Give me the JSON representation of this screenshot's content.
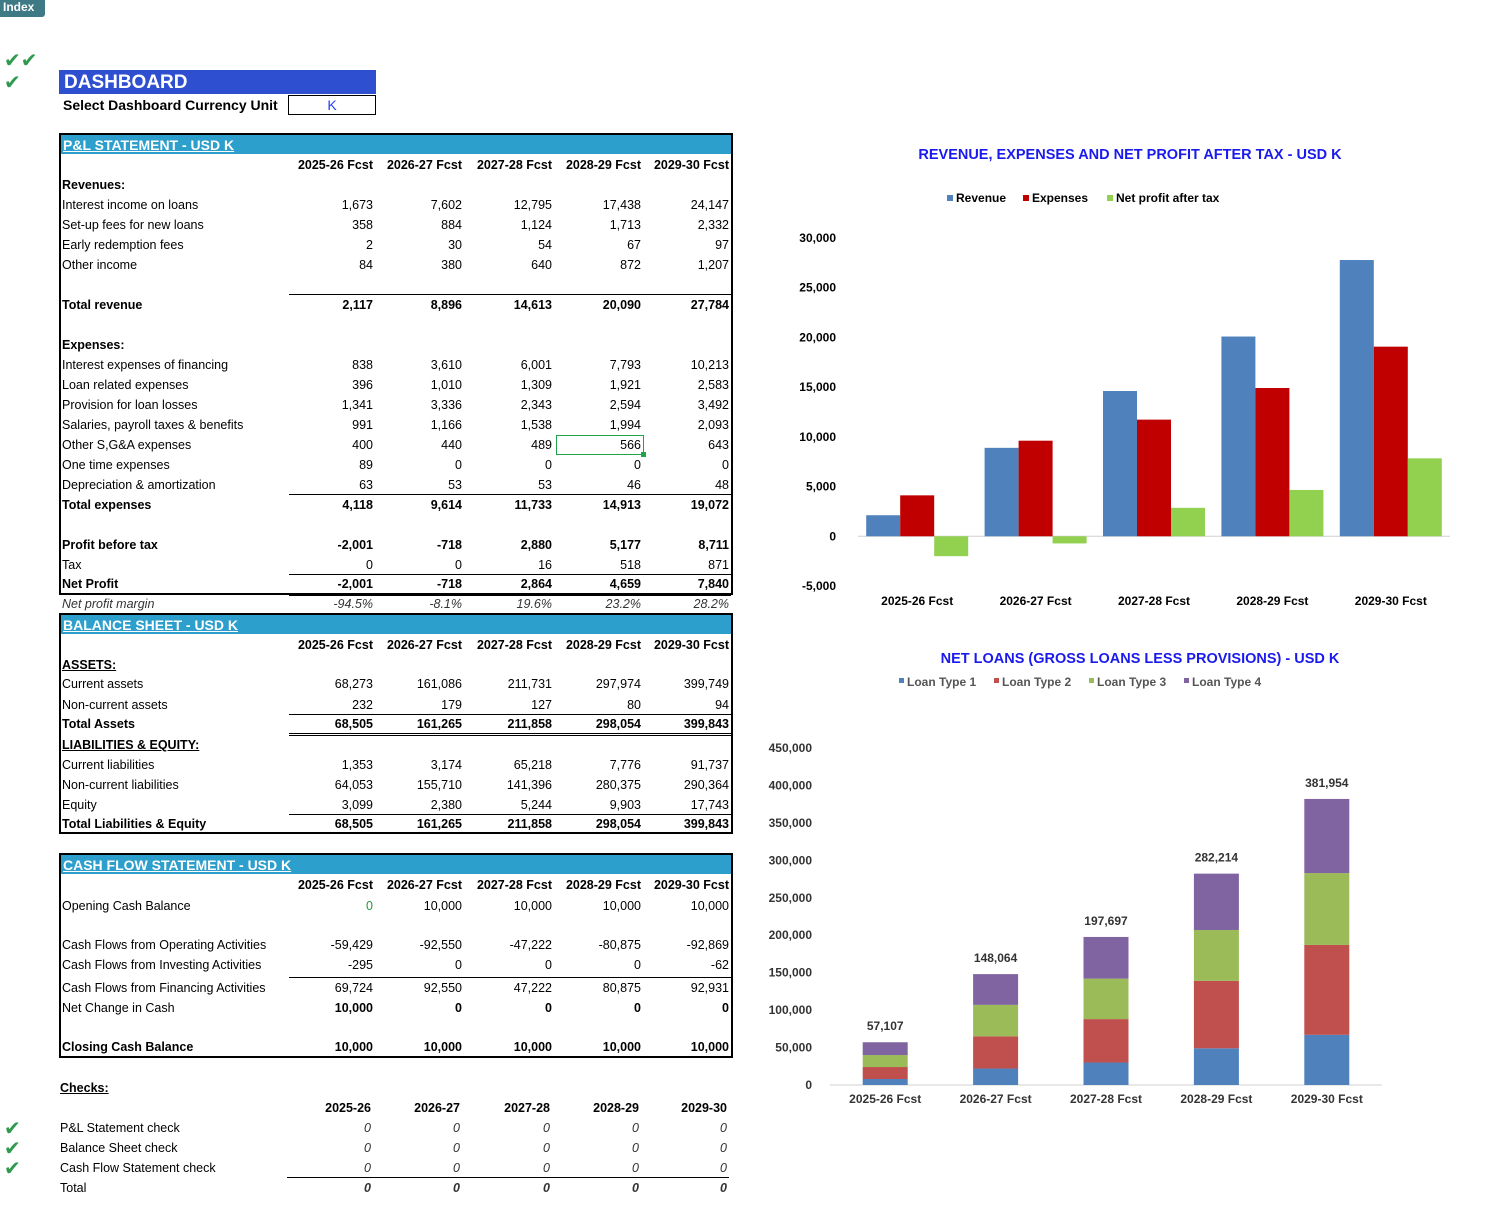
{
  "index_button": "Index",
  "dashboard": {
    "title": "DASHBOARD",
    "currency_label": "Select Dashboard Currency Unit",
    "currency_value": "K"
  },
  "pl": {
    "title": "P&L STATEMENT - USD K",
    "years": [
      "2025-26 Fcst",
      "2026-27 Fcst",
      "2027-28 Fcst",
      "2028-29 Fcst",
      "2029-30 Fcst"
    ],
    "revenues_label": "Revenues:",
    "rows_rev": [
      {
        "label": "Interest income on loans",
        "v": [
          "1,673",
          "7,602",
          "12,795",
          "17,438",
          "24,147"
        ]
      },
      {
        "label": "Set-up fees for new loans",
        "v": [
          "358",
          "884",
          "1,124",
          "1,713",
          "2,332"
        ]
      },
      {
        "label": "Early redemption fees",
        "v": [
          "2",
          "30",
          "54",
          "67",
          "97"
        ]
      },
      {
        "label": "Other income",
        "v": [
          "84",
          "380",
          "640",
          "872",
          "1,207"
        ]
      }
    ],
    "total_revenue": {
      "label": "Total revenue",
      "v": [
        "2,117",
        "8,896",
        "14,613",
        "20,090",
        "27,784"
      ]
    },
    "expenses_label": "Expenses:",
    "rows_exp": [
      {
        "label": "Interest expenses of financing",
        "v": [
          "838",
          "3,610",
          "6,001",
          "7,793",
          "10,213"
        ]
      },
      {
        "label": "Loan related expenses",
        "v": [
          "396",
          "1,010",
          "1,309",
          "1,921",
          "2,583"
        ]
      },
      {
        "label": "Provision for loan losses",
        "v": [
          "1,341",
          "3,336",
          "2,343",
          "2,594",
          "3,492"
        ]
      },
      {
        "label": "Salaries, payroll taxes & benefits",
        "v": [
          "991",
          "1,166",
          "1,538",
          "1,994",
          "2,093"
        ]
      },
      {
        "label": "Other S,G&A expenses",
        "v": [
          "400",
          "440",
          "489",
          "566",
          "643"
        ]
      },
      {
        "label": "One time expenses",
        "v": [
          "89",
          "0",
          "0",
          "0",
          "0"
        ]
      },
      {
        "label": "Depreciation & amortization",
        "v": [
          "63",
          "53",
          "53",
          "46",
          "48"
        ]
      }
    ],
    "total_expenses": {
      "label": "Total expenses",
      "v": [
        "4,118",
        "9,614",
        "11,733",
        "14,913",
        "19,072"
      ]
    },
    "profit_before_tax": {
      "label": "Profit before tax",
      "v": [
        "-2,001",
        "-718",
        "2,880",
        "5,177",
        "8,711"
      ]
    },
    "tax": {
      "label": "Tax",
      "v": [
        "0",
        "0",
        "16",
        "518",
        "871"
      ]
    },
    "net_profit": {
      "label": "Net Profit",
      "v": [
        "-2,001",
        "-718",
        "2,864",
        "4,659",
        "7,840"
      ]
    },
    "net_margin": {
      "label": "Net profit margin",
      "v": [
        "-94.5%",
        "-8.1%",
        "19.6%",
        "23.2%",
        "28.2%"
      ]
    }
  },
  "bs": {
    "title": "BALANCE SHEET - USD K",
    "years": [
      "2025-26 Fcst",
      "2026-27 Fcst",
      "2027-28 Fcst",
      "2028-29 Fcst",
      "2029-30 Fcst"
    ],
    "assets_label": "ASSETS:",
    "current_assets": {
      "label": "Current assets",
      "v": [
        "68,273",
        "161,086",
        "211,731",
        "297,974",
        "399,749"
      ]
    },
    "noncurrent_assets": {
      "label": "Non-current assets",
      "v": [
        "232",
        "179",
        "127",
        "80",
        "94"
      ]
    },
    "total_assets": {
      "label": "Total Assets",
      "v": [
        "68,505",
        "161,265",
        "211,858",
        "298,054",
        "399,843"
      ]
    },
    "liab_label": "LIABILITIES & EQUITY:",
    "current_liab": {
      "label": "Current liabilities",
      "v": [
        "1,353",
        "3,174",
        "65,218",
        "7,776",
        "91,737"
      ]
    },
    "noncurrent_liab": {
      "label": "Non-current liabilities",
      "v": [
        "64,053",
        "155,710",
        "141,396",
        "280,375",
        "290,364"
      ]
    },
    "equity": {
      "label": "Equity",
      "v": [
        "3,099",
        "2,380",
        "5,244",
        "9,903",
        "17,743"
      ]
    },
    "total_le": {
      "label": "Total Liabilities & Equity",
      "v": [
        "68,505",
        "161,265",
        "211,858",
        "298,054",
        "399,843"
      ]
    }
  },
  "cf": {
    "title": "CASH FLOW STATEMENT -  USD K",
    "years": [
      "2025-26 Fcst",
      "2026-27 Fcst",
      "2027-28 Fcst",
      "2028-29 Fcst",
      "2029-30 Fcst"
    ],
    "opening": {
      "label": "Opening Cash Balance",
      "v": [
        "0",
        "10,000",
        "10,000",
        "10,000",
        "10,000"
      ]
    },
    "operating": {
      "label": "Cash Flows from Operating Activities",
      "v": [
        "-59,429",
        "-92,550",
        "-47,222",
        "-80,875",
        "-92,869"
      ]
    },
    "investing": {
      "label": "Cash Flows from Investing Activities",
      "v": [
        "-295",
        "0",
        "0",
        "0",
        "-62"
      ]
    },
    "financing": {
      "label": "Cash Flows from Financing Activities",
      "v": [
        "69,724",
        "92,550",
        "47,222",
        "80,875",
        "92,931"
      ]
    },
    "net_change": {
      "label": "Net Change in Cash",
      "v": [
        "10,000",
        "0",
        "0",
        "0",
        "0"
      ]
    },
    "closing": {
      "label": "Closing Cash Balance",
      "v": [
        "10,000",
        "10,000",
        "10,000",
        "10,000",
        "10,000"
      ]
    }
  },
  "checks": {
    "title": "Checks:",
    "years": [
      "2025-26",
      "2026-27",
      "2027-28",
      "2028-29",
      "2029-30"
    ],
    "rows": [
      {
        "label": "P&L Statement check",
        "v": [
          "0",
          "0",
          "0",
          "0",
          "0"
        ]
      },
      {
        "label": "Balance Sheet check",
        "v": [
          "0",
          "0",
          "0",
          "0",
          "0"
        ]
      },
      {
        "label": "Cash Flow Statement check",
        "v": [
          "0",
          "0",
          "0",
          "0",
          "0"
        ]
      }
    ],
    "total": {
      "label": "Total",
      "v": [
        "0",
        "0",
        "0",
        "0",
        "0"
      ]
    }
  },
  "colors": {
    "blue": "#4f81bd",
    "red": "#c00000",
    "green": "#92d050",
    "loan2": "#c0504d",
    "loan3": "#9bbb59",
    "loan4": "#8064a2",
    "title": "#1a1aee"
  },
  "chart_data": [
    {
      "type": "bar",
      "title": "REVENUE, EXPENSES AND NET PROFIT AFTER TAX - USD K",
      "categories": [
        "2025-26 Fcst",
        "2026-27 Fcst",
        "2027-28 Fcst",
        "2028-29 Fcst",
        "2029-30 Fcst"
      ],
      "series": [
        {
          "name": "Revenue",
          "values": [
            2117,
            8896,
            14613,
            20090,
            27784
          ]
        },
        {
          "name": "Expenses",
          "values": [
            4118,
            9614,
            11733,
            14913,
            19072
          ]
        },
        {
          "name": "Net profit after tax",
          "values": [
            -2001,
            -718,
            2864,
            4659,
            7840
          ]
        }
      ],
      "ylim": [
        -5000,
        30000
      ],
      "yticks": [
        "30,000",
        "25,000",
        "20,000",
        "15,000",
        "10,000",
        "5,000",
        "0",
        "-5,000"
      ],
      "legend": "top"
    },
    {
      "type": "bar",
      "stacked": true,
      "title": "NET LOANS (GROSS LOANS LESS PROVISIONS) - USD K",
      "categories": [
        "2025-26 Fcst",
        "2026-27 Fcst",
        "2027-28 Fcst",
        "2028-29 Fcst",
        "2029-30 Fcst"
      ],
      "series": [
        {
          "name": "Loan Type 1",
          "values": [
            8000,
            22000,
            30000,
            49000,
            67000
          ]
        },
        {
          "name": "Loan Type 2",
          "values": [
            16000,
            43000,
            58000,
            90000,
            120000
          ]
        },
        {
          "name": "Loan Type 3",
          "values": [
            16000,
            42000,
            54000,
            68000,
            96000
          ]
        },
        {
          "name": "Loan Type 4",
          "values": [
            17107,
            41064,
            55697,
            75214,
            98954
          ]
        }
      ],
      "totals": [
        "57,107",
        "148,064",
        "197,697",
        "282,214",
        "381,954"
      ],
      "total_values": [
        57107,
        148064,
        197697,
        282214,
        381954
      ],
      "ylim": [
        0,
        450000
      ],
      "yticks": [
        "450,000",
        "400,000",
        "350,000",
        "300,000",
        "250,000",
        "200,000",
        "150,000",
        "100,000",
        "50,000",
        "0"
      ],
      "legend": "top"
    }
  ]
}
